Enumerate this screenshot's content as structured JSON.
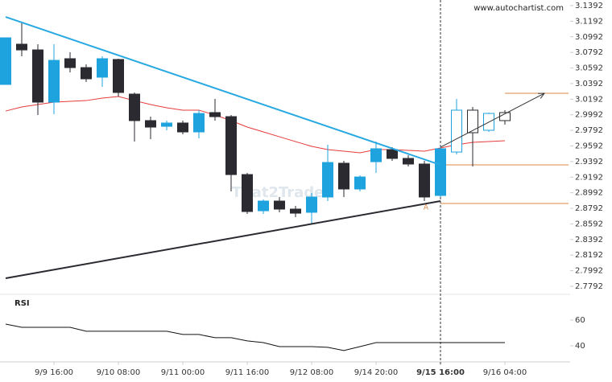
{
  "chart_data": {
    "type": "candlestick",
    "source": "www.autochartist.com",
    "watermark": "That2Trade",
    "categories": [
      null,
      null,
      null,
      "9/9 16:00",
      null,
      null,
      null,
      "9/10 08:00",
      null,
      null,
      null,
      "9/11 00:00",
      null,
      null,
      null,
      "9/11 16:00",
      null,
      null,
      null,
      "9/12 08:00",
      null,
      null,
      null,
      "9/14 20:00",
      null,
      null,
      null,
      "9/15 16:00",
      null,
      null,
      null,
      "9/16 04:00"
    ],
    "open": [
      3.0381,
      3.0897,
      3.0824,
      3.0154,
      3.0711,
      3.0597,
      3.0474,
      3.0701,
      3.0257,
      2.9917,
      2.9844,
      2.9886,
      2.9772,
      3.002,
      2.9968,
      2.9225,
      2.8761,
      2.8885,
      2.8782,
      2.8741,
      2.8937,
      2.937,
      2.904,
      2.939,
      2.9545,
      2.9432,
      2.936,
      2.8957,
      2.9514,
      3.0051,
      2.9793,
      3.002
    ],
    "high": [
      3.0979,
      3.1175,
      3.0897,
      3.0897,
      3.0793,
      3.0639,
      3.0742,
      3.0711,
      3.0278,
      2.9968,
      2.9917,
      2.9917,
      3.0051,
      3.0195,
      2.9989,
      2.9246,
      2.8906,
      2.8937,
      2.8823,
      2.8988,
      2.9607,
      2.9401,
      2.9215,
      2.9648,
      2.9576,
      2.9473,
      2.9401,
      2.9587,
      3.0195,
      3.0092,
      3.002,
      3.0051
    ],
    "low": [
      3.0381,
      3.0742,
      2.9989,
      2.9999,
      3.0536,
      3.0412,
      3.035,
      3.0226,
      2.9648,
      2.9679,
      2.9793,
      2.9741,
      2.969,
      2.9917,
      2.9009,
      2.872,
      2.872,
      2.8741,
      2.8679,
      2.8596,
      2.8885,
      2.8937,
      2.9009,
      2.9246,
      2.9401,
      2.9329,
      2.8885,
      2.8937,
      2.9483,
      2.9329,
      2.9772,
      2.9865
    ],
    "close": [
      3.0979,
      3.0824,
      3.0154,
      3.069,
      3.0597,
      3.0453,
      3.0711,
      3.0278,
      2.9917,
      2.9834,
      2.9886,
      2.9772,
      3.0009,
      2.9968,
      2.9225,
      2.8751,
      2.8885,
      2.8782,
      2.873,
      2.8937,
      2.938,
      2.904,
      2.9194,
      2.9556,
      2.9432,
      2.936,
      2.8937,
      2.9556,
      3.0051,
      2.9762,
      3.0009,
      2.9917
    ],
    "hollow": [
      false,
      false,
      false,
      false,
      false,
      false,
      false,
      false,
      false,
      false,
      false,
      false,
      false,
      false,
      false,
      false,
      false,
      false,
      false,
      false,
      false,
      false,
      false,
      false,
      false,
      false,
      false,
      false,
      true,
      true,
      true,
      true
    ],
    "up_color": "#1fa3de",
    "down_color": "#2a2a30",
    "ylim": [
      2.7699,
      3.1464
    ],
    "yticks": [
      3.1392,
      3.1192,
      3.0992,
      3.0792,
      3.0592,
      3.0392,
      3.0192,
      2.9992,
      2.9792,
      2.9592,
      2.9392,
      2.9192,
      2.8992,
      2.8792,
      2.8592,
      2.8392,
      2.8192,
      2.7992,
      2.7792
    ],
    "moving_average": {
      "color": "#e63a3a",
      "values": [
        3.004,
        3.0092,
        3.0123,
        3.0154,
        3.0164,
        3.0174,
        3.0205,
        3.0226,
        3.0174,
        3.0123,
        3.0082,
        3.0051,
        3.0051,
        2.9989,
        2.9917,
        2.9834,
        2.9772,
        2.971,
        2.9648,
        2.9587,
        2.9545,
        2.9525,
        2.9504,
        2.9545,
        2.9545,
        2.9535,
        2.9525,
        2.9566,
        2.9607,
        2.9638,
        2.9648,
        2.9659
      ]
    },
    "trendlines": [
      {
        "color": "#29a9e1",
        "from": {
          "index": 0,
          "value": 3.1247
        },
        "to": {
          "index": 27,
          "value": 2.9349
        }
      },
      {
        "color": "#2a2a30",
        "from": {
          "index": 0,
          "value": 2.7895
        },
        "to": {
          "index": 27,
          "value": 2.8885
        }
      }
    ],
    "forecast_arrow": {
      "color": "#333333",
      "from": {
        "index": 27,
        "value": 2.9576
      },
      "to_value": 3.0267
    },
    "levels": [
      {
        "value": 3.0267,
        "start": 31,
        "color": "#d98a4a"
      },
      {
        "value": 2.9349,
        "start": 27,
        "color": "#d98a4a"
      },
      {
        "value": 2.8854,
        "start": 27,
        "color": "#d98a4a"
      }
    ],
    "pattern_label": {
      "text": "A",
      "index": 26,
      "value": 2.8802,
      "color": "#d98a4a"
    },
    "marker_index": 27,
    "rsi": {
      "label": "RSI",
      "color": "#111111",
      "values": [
        56.9,
        54.4,
        54.4,
        54.4,
        54.4,
        51.3,
        51.3,
        51.3,
        51.3,
        51.3,
        51.3,
        48.8,
        48.8,
        46.3,
        46.3,
        43.8,
        42.5,
        39.4,
        39.4,
        39.4,
        38.8,
        36.3,
        39.4,
        42.5,
        42.5,
        42.5,
        42.5,
        42.5,
        42.5,
        42.5,
        42.5,
        42.5
      ],
      "ylim": [
        27.5,
        78.75
      ],
      "yticks": [
        40,
        60
      ]
    }
  }
}
